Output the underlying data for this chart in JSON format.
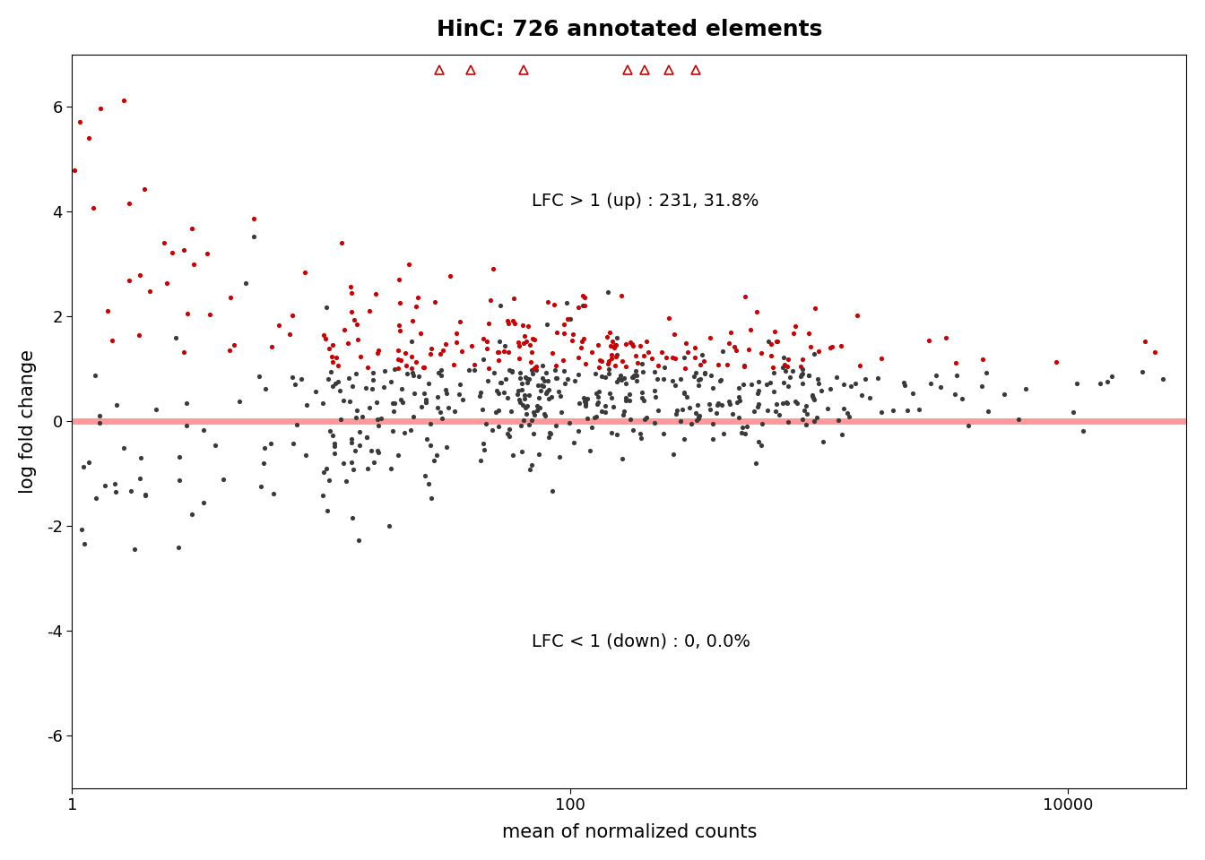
{
  "title": "HinC: 726 annotated elements",
  "xlabel": "mean of normalized counts",
  "ylabel": "log fold change",
  "xlim_log": [
    1,
    30000
  ],
  "ylim": [
    -7,
    7
  ],
  "yticks": [
    -6,
    -4,
    -2,
    0,
    2,
    4,
    6
  ],
  "xtick_labels": [
    "1",
    "100",
    "10000"
  ],
  "xtick_values": [
    1,
    100,
    10000
  ],
  "annotation_up": "LFC > 1 (up) : 231, 31.8%",
  "annotation_down": "LFC < 1 (down) : 0, 0.0%",
  "hline_y": 0,
  "hline_color": "#FF9999",
  "hline_lw": 5,
  "dot_color_sig": "#CC0000",
  "dot_color_ns": "#3A3A3A",
  "dot_size": 14,
  "title_fontsize": 18,
  "label_fontsize": 15,
  "annot_fontsize": 14,
  "tick_fontsize": 13,
  "background_color": "#FFFFFF",
  "n_total": 726,
  "n_up": 231,
  "seed": 42
}
